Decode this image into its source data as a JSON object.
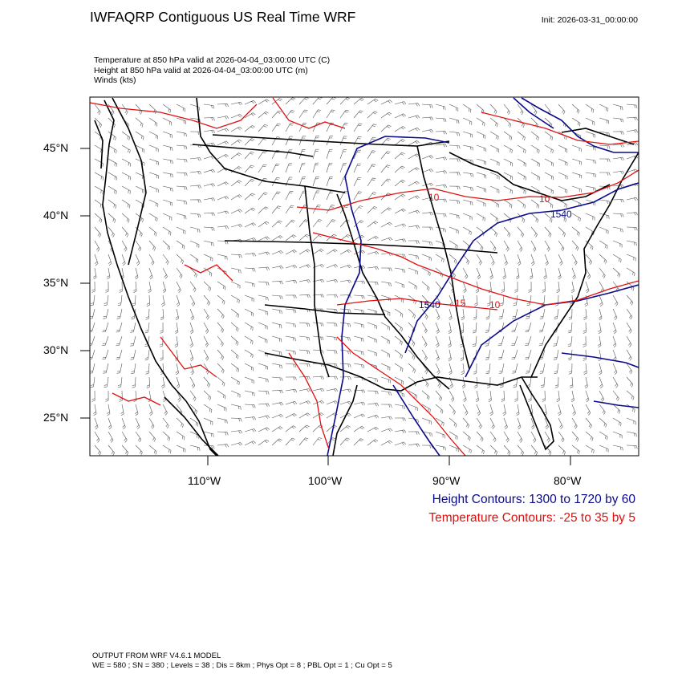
{
  "header": {
    "title": "IWFAQRP Contiguous US Real Time WRF",
    "init": "Init: 2026-03-31_00:00:00"
  },
  "fields": {
    "temperature": "Temperature at 850 hPa valid at 2026-04-04_03:00:00 UTC   (C)",
    "height": "Height at 850 hPa valid at 2026-04-04_03:00:00 UTC   (m)",
    "winds": "Winds   (kts)"
  },
  "axes": {
    "latitudes": [
      "45°N",
      "40°N",
      "35°N",
      "30°N",
      "25°N"
    ],
    "longitudes": [
      "110°W",
      "100°W",
      "90°W",
      "80°W"
    ]
  },
  "contour_labels": {
    "height": [
      "1540",
      "1540"
    ],
    "temperature": [
      "10",
      "10",
      "15",
      "10"
    ]
  },
  "legend": {
    "height": "Height Contours: 1300 to 1720 by 60",
    "temperature": "Temperature Contours: -25 to 35 by 5",
    "height_color": "#0a0a8c",
    "temperature_color": "#e01010"
  },
  "footer": {
    "line1": "OUTPUT FROM WRF V4.6.1 MODEL",
    "line2": "WE = 580 ; SN = 380 ; Levels = 38 ; Dis = 8km ; Phys Opt = 8 ; PBL Opt = 1 ; Cu Opt = 5"
  }
}
